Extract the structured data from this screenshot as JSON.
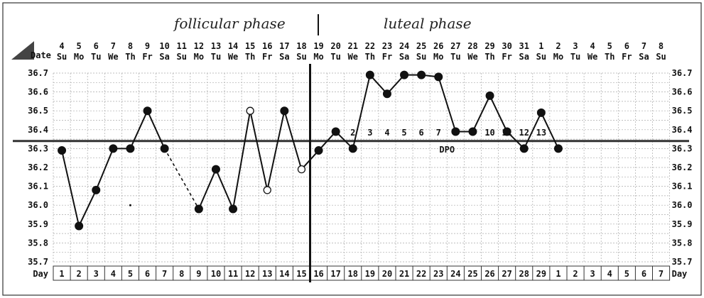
{
  "chart_data": {
    "type": "line",
    "phases": {
      "left": "follicular phase",
      "right": "luteal phase"
    },
    "header_label": "Date",
    "dates": [
      "4",
      "5",
      "6",
      "7",
      "8",
      "9",
      "10",
      "11",
      "12",
      "13",
      "14",
      "15",
      "16",
      "17",
      "18",
      "19",
      "20",
      "21",
      "22",
      "23",
      "24",
      "25",
      "26",
      "27",
      "28",
      "29",
      "30",
      "31",
      "1",
      "2",
      "3",
      "4",
      "5",
      "6",
      "7",
      "8"
    ],
    "weekdays": [
      "Su",
      "Mo",
      "Tu",
      "We",
      "Th",
      "Fr",
      "Sa",
      "Su",
      "Mo",
      "Tu",
      "We",
      "Th",
      "Fr",
      "Sa",
      "Su",
      "Mo",
      "Tu",
      "We",
      "Th",
      "Fr",
      "Sa",
      "Su",
      "Mo",
      "Tu",
      "We",
      "Th",
      "Fr",
      "Sa",
      "Su",
      "Mo",
      "Tu",
      "We",
      "Th",
      "Fr",
      "Sa",
      "Su"
    ],
    "day_label": "Day",
    "days": [
      "1",
      "2",
      "3",
      "4",
      "5",
      "6",
      "7",
      "8",
      "9",
      "10",
      "11",
      "12",
      "13",
      "14",
      "15",
      "16",
      "17",
      "18",
      "19",
      "20",
      "21",
      "22",
      "23",
      "24",
      "25",
      "26",
      "27",
      "28",
      "29",
      "1",
      "2",
      "3",
      "4",
      "5",
      "6",
      "7"
    ],
    "y_ticks": [
      "36.7",
      "36.6",
      "36.5",
      "36.4",
      "36.3",
      "36.2",
      "36.1",
      "36.0",
      "35.9",
      "35.8",
      "35.7"
    ],
    "ylim": [
      35.7,
      36.7
    ],
    "coverline": 36.34,
    "ovulation_day": 16,
    "dpo_label": "DPO",
    "dpo_numbers": [
      "1",
      "2",
      "3",
      "4",
      "5",
      "6",
      "7",
      "8",
      "9",
      "10",
      "11",
      "12",
      "13"
    ],
    "temperatures": [
      36.29,
      35.89,
      36.08,
      36.3,
      36.3,
      36.5,
      36.3,
      null,
      35.98,
      36.19,
      35.98,
      36.5,
      36.08,
      36.5,
      36.19,
      36.29,
      36.39,
      36.3,
      36.69,
      36.59,
      36.69,
      36.69,
      36.68,
      36.39,
      36.39,
      36.58,
      36.39,
      36.3,
      36.49,
      36.3
    ],
    "open_markers": [
      12,
      13,
      15
    ],
    "dashed_segment": [
      7,
      9
    ],
    "stray_point": {
      "day": 5,
      "value": 36.0
    }
  }
}
